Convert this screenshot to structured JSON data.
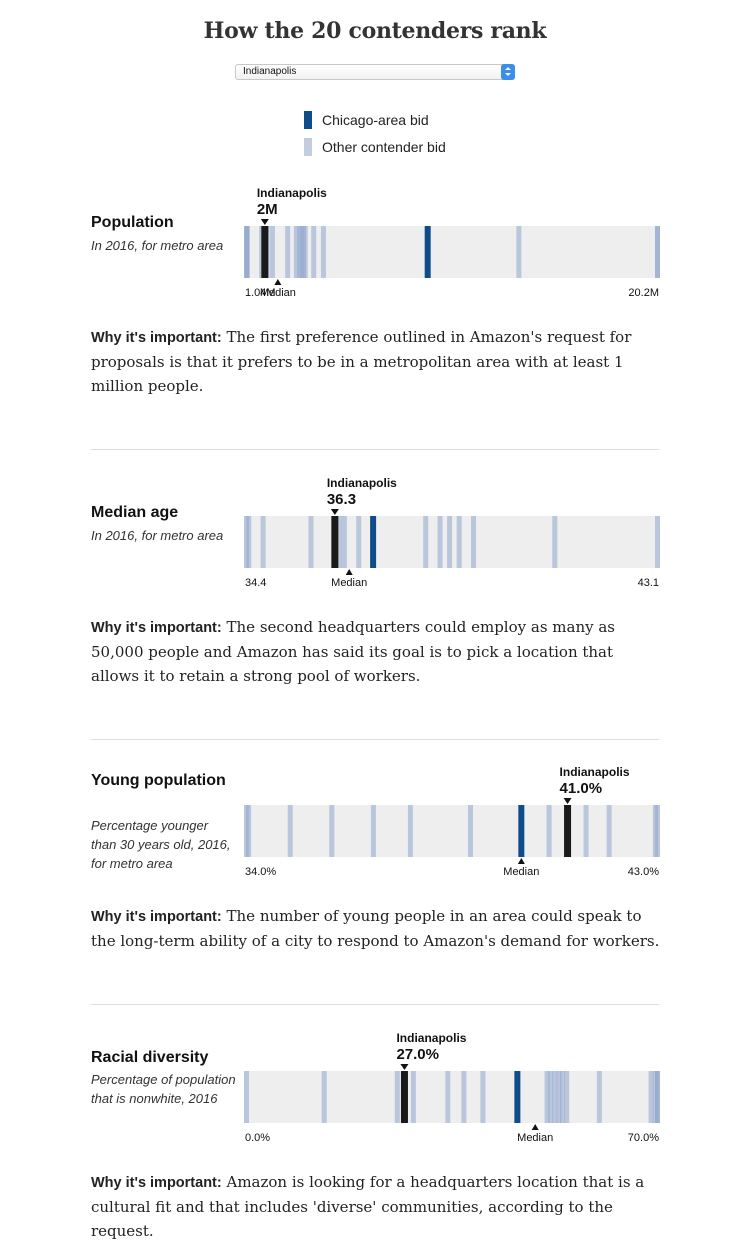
{
  "title": "How the 20 contenders rank",
  "selector": {
    "selected": "Indianapolis"
  },
  "legend": [
    {
      "label": "Chicago-area bid",
      "color": "#0e4d8a"
    },
    {
      "label": "Other contender bid",
      "color": "#c3cde0"
    }
  ],
  "colors": {
    "chicago": "#0e4d8a",
    "other": "#8fa6cd",
    "selected": "#1a1a1a",
    "track": "#eeeeee"
  },
  "chart_data": [
    {
      "type": "strip",
      "name": "Population",
      "subtitle": "In 2016, for metro area",
      "min_label": "1.04M",
      "max_label": "20.2M",
      "xlim": [
        1.04,
        20.2
      ],
      "median": 2.6,
      "median_label": "Median",
      "selected": {
        "name": "Indianapolis",
        "value": 2.0,
        "label": "2M"
      },
      "chicago_value": 9.5,
      "values": [
        1.04,
        1.1,
        1.2,
        1.85,
        2.0,
        2.1,
        2.35,
        3.05,
        3.45,
        3.6,
        3.68,
        3.78,
        3.86,
        4.25,
        4.7,
        9.5,
        13.7,
        20.1,
        20.2
      ]
    },
    {
      "type": "strip",
      "name": "Median age",
      "subtitle": "In 2016, for metro area",
      "min_label": "34.4",
      "max_label": "43.1",
      "xlim": [
        34.4,
        43.1
      ],
      "median": 36.6,
      "median_label": "Median",
      "selected": {
        "name": "Indianapolis",
        "value": 36.3,
        "label": "36.3"
      },
      "chicago_value": 37.1,
      "values": [
        34.4,
        34.5,
        34.8,
        35.8,
        36.3,
        36.4,
        36.5,
        36.8,
        37.1,
        38.2,
        38.5,
        38.7,
        38.9,
        39.2,
        40.9,
        43.1
      ]
    },
    {
      "type": "strip",
      "name": "Young population",
      "subtitle": "Percentage younger than 30 years old, 2016, for metro area",
      "min_label": "34.0%",
      "max_label": "43.0%",
      "xlim": [
        34.0,
        43.0
      ],
      "median": 40.0,
      "median_label": "Median",
      "selected": {
        "name": "Indianapolis",
        "value": 41.0,
        "label": "41.0%"
      },
      "chicago_value": 40.0,
      "values": [
        34.0,
        34.1,
        35.0,
        35.9,
        36.8,
        37.6,
        38.9,
        40.0,
        40.6,
        41.0,
        41.4,
        41.9,
        42.9,
        43.0
      ]
    },
    {
      "type": "strip",
      "name": "Racial diversity",
      "subtitle": "Percentage of population that is nonwhite, 2016",
      "min_label": "0.0%",
      "max_label": "70.0%",
      "xlim": [
        0.0,
        70.0
      ],
      "median": 49.0,
      "median_label": "Median",
      "selected": {
        "name": "Indianapolis",
        "value": 27.0,
        "label": "27.0%"
      },
      "chicago_value": 46.0,
      "values": [
        0.0,
        13.5,
        25.8,
        27.0,
        28.5,
        34.3,
        37.0,
        40.2,
        46.0,
        51.0,
        51.6,
        52.3,
        53.0,
        53.6,
        54.3,
        59.8,
        68.5,
        69.2,
        69.8,
        70.0
      ]
    }
  ],
  "sections": [
    {
      "why_label": "Why it's important:",
      "why_text": " The first preference outlined in Amazon's request for proposals is that it prefers to be in a metropolitan area with at least 1 million people."
    },
    {
      "why_label": "Why it's important:",
      "why_text": " The second headquarters could employ as many as 50,000 people and Amazon has said its goal is to pick a location that allows it to retain a strong pool of workers."
    },
    {
      "why_label": "Why it's important:",
      "why_text": " The number of young people in an area could speak to the long-term ability of a city to respond to Amazon's demand for workers."
    },
    {
      "why_label": "Why it's important:",
      "why_text": " Amazon is looking for a headquarters location that is a cultural fit and that includes 'diverse' communities, according to the request."
    }
  ]
}
